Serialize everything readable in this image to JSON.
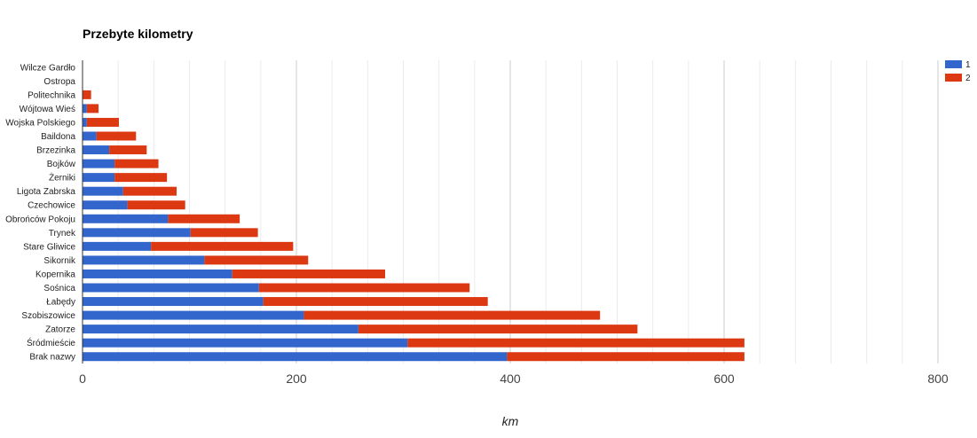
{
  "chart_data": {
    "type": "bar",
    "orientation": "horizontal",
    "stacked": true,
    "title": "Przebyte kilometry",
    "xlabel": "km",
    "ylabel": "",
    "xlim": [
      0,
      800
    ],
    "xticks": [
      0,
      200,
      400,
      600,
      800
    ],
    "grid": true,
    "legend_position": "top-right",
    "categories": [
      "Wilcze Gardło",
      "Ostropa",
      "Politechnika",
      "Wójtowa Wieś",
      "Wojska Polskiego",
      "Baildona",
      "Brzezinka",
      "Bojków",
      "Żerniki",
      "Ligota Zabrska",
      "Czechowice",
      "Obrońców Pokoju",
      "Trynek",
      "Stare Gliwice",
      "Sikornik",
      "Kopernika",
      "Sośnica",
      "Łabędy",
      "Szobiszowice",
      "Zatorze",
      "Śródmieście",
      "Brak nazwy"
    ],
    "series": [
      {
        "name": "1",
        "color": "#3366cc",
        "values": [
          0,
          0,
          0,
          4,
          4,
          13,
          25,
          30,
          30,
          38,
          42,
          80,
          101,
          64,
          114,
          140,
          165,
          169,
          207,
          258,
          304,
          397
        ]
      },
      {
        "name": "2",
        "color": "#dc3912",
        "values": [
          0,
          0,
          8,
          11,
          30,
          37,
          35,
          41,
          49,
          50,
          54,
          67,
          63,
          133,
          97,
          143,
          197,
          210,
          277,
          261,
          315,
          222
        ]
      }
    ]
  }
}
